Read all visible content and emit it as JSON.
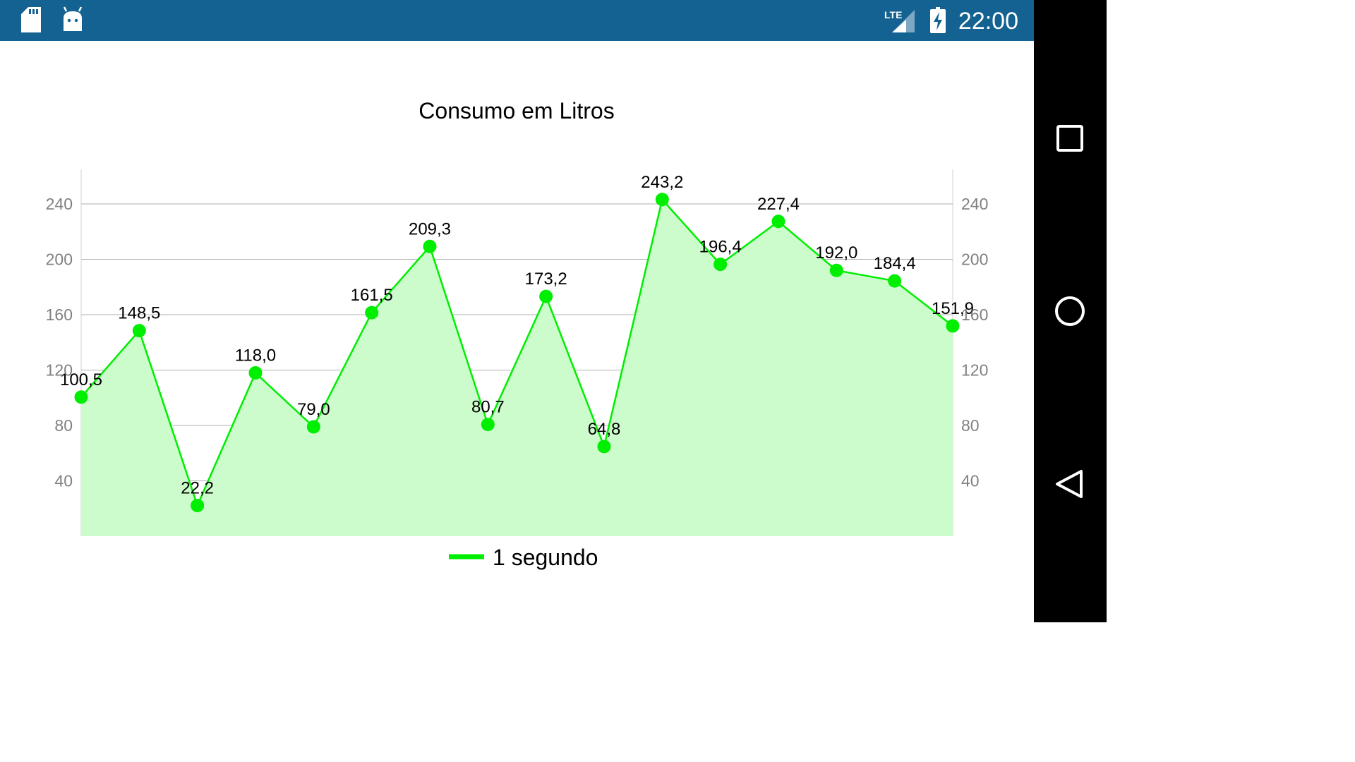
{
  "status_bar": {
    "time": "22:00",
    "network": "LTE",
    "icons": [
      "sd-card-icon",
      "android-debug-icon",
      "lte-signal-icon",
      "battery-charging-icon"
    ],
    "color": "#136292"
  },
  "nav_bar": {
    "icons": [
      "recents-square-icon",
      "home-circle-icon",
      "back-triangle-icon"
    ]
  },
  "chart_data": {
    "type": "line",
    "title": "Consumo em Litros",
    "categories": [
      "",
      "",
      "",
      "",
      "",
      "",
      "",
      "",
      "",
      "",
      "",
      "",
      "",
      "",
      "",
      ""
    ],
    "series": [
      {
        "name": "1 segundo",
        "values": [
          100.5,
          148.5,
          22.2,
          118.0,
          79.0,
          161.5,
          209.3,
          80.7,
          173.2,
          64.8,
          243.2,
          196.4,
          227.4,
          192.0,
          184.4,
          151.9
        ],
        "value_labels": [
          "100,5",
          "148,5",
          "22,2",
          "118,0",
          "79,0",
          "161,5",
          "209,3",
          "80,7",
          "173,2",
          "64,8",
          "243,2",
          "196,4",
          "227,4",
          "192,0",
          "184,4",
          "151,9"
        ],
        "color": "#00ee00",
        "fill_color": "#ccfccc",
        "filled": true
      }
    ],
    "y_ticks": [
      40,
      80,
      120,
      160,
      200,
      240
    ],
    "ylim": [
      0,
      265
    ],
    "y_axis_left": true,
    "y_axis_right": true,
    "grid": true,
    "legend_position": "bottom-center",
    "xlabel": "",
    "ylabel": ""
  }
}
